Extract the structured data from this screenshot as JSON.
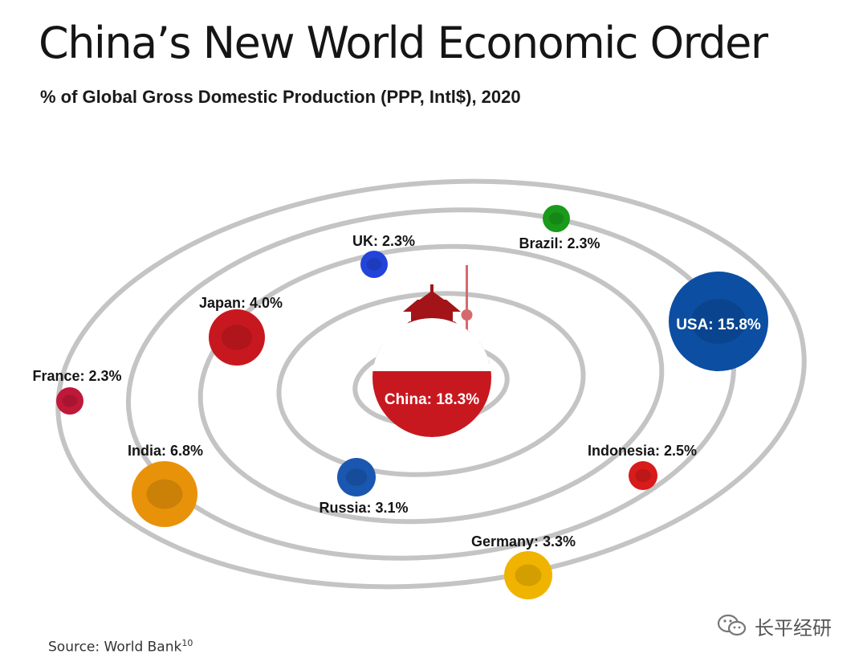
{
  "title": "China’s New World Economic Order",
  "subtitle": "%  of Global Gross Domestic Production (PPP, Intl$), 2020",
  "source": {
    "text": "Source: World Bank",
    "superscript": "10"
  },
  "watermark": {
    "text": "长平经研",
    "icon": "wechat-icon"
  },
  "chart_data": {
    "type": "bubble",
    "title": "China’s New World Economic Order",
    "subtitle": "%  of Global Gross Domestic Production (PPP, Intl$), 2020",
    "unit": "% of global GDP (PPP)",
    "year": 2020,
    "orbits": 5,
    "series": [
      {
        "name": "China",
        "value": 18.3,
        "label": "China: 18.3%",
        "color": "#c8181f",
        "orbit": 0
      },
      {
        "name": "USA",
        "value": 15.8,
        "label": "USA: 15.8%",
        "color": "#0c4ea2",
        "orbit": 5
      },
      {
        "name": "India",
        "value": 6.8,
        "label": "India: 6.8%",
        "color": "#e8920a",
        "orbit": 4
      },
      {
        "name": "Japan",
        "value": 4.0,
        "label": "Japan: 4.0%",
        "color": "#c8181f",
        "orbit": 3
      },
      {
        "name": "Germany",
        "value": 3.3,
        "label": "Germany: 3.3%",
        "color": "#f0b400",
        "orbit": 5
      },
      {
        "name": "Russia",
        "value": 3.1,
        "label": "Russia: 3.1%",
        "color": "#1a57b0",
        "orbit": 2
      },
      {
        "name": "Indonesia",
        "value": 2.5,
        "label": "Indonesia: 2.5%",
        "color": "#d81b1b",
        "orbit": 4
      },
      {
        "name": "UK",
        "value": 2.3,
        "label": "UK: 2.3%",
        "color": "#2244d8",
        "orbit": 3
      },
      {
        "name": "Brazil",
        "value": 2.3,
        "label": "Brazil: 2.3%",
        "color": "#1a9a1a",
        "orbit": 4
      },
      {
        "name": "France",
        "value": 2.3,
        "label": "France: 2.3%",
        "color": "#c01838",
        "orbit": 5
      }
    ]
  }
}
